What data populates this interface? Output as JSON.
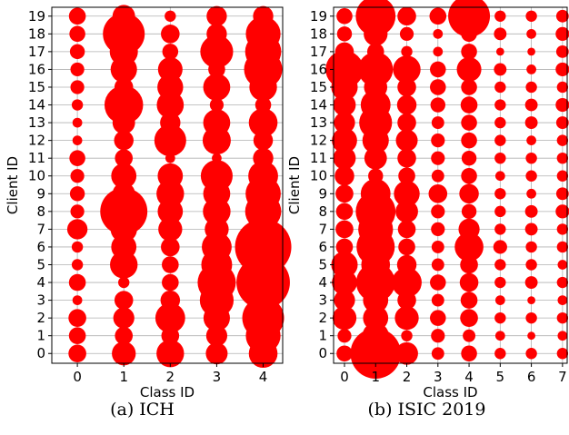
{
  "chart_data": [
    {
      "type": "scatter",
      "caption_label": "(a)",
      "caption_title": "ICH",
      "xlabel": "Class ID",
      "ylabel": "Client ID",
      "x_ticks": [
        "0",
        "1",
        "2",
        "3",
        "4"
      ],
      "y_ticks": [
        "0",
        "1",
        "2",
        "3",
        "4",
        "5",
        "6",
        "7",
        "8",
        "9",
        "10",
        "11",
        "12",
        "13",
        "14",
        "15",
        "16",
        "17",
        "18",
        "19"
      ],
      "xlim": [
        -0.55,
        4.42
      ],
      "ylim": [
        -0.55,
        19.5
      ],
      "grid": true,
      "marker_color": "#ff0000",
      "size_unit": "relative marker size (0-1)",
      "points": [
        [
          0,
          19,
          0.09
        ],
        [
          1,
          19,
          0.16
        ],
        [
          2,
          19,
          0.04
        ],
        [
          3,
          19,
          0.13
        ],
        [
          4,
          19,
          0.13
        ],
        [
          0,
          18,
          0.08
        ],
        [
          1,
          18,
          0.55
        ],
        [
          2,
          18,
          0.11
        ],
        [
          3,
          18,
          0.13
        ],
        [
          4,
          18,
          0.38
        ],
        [
          0,
          17,
          0.07
        ],
        [
          1,
          17,
          0.25
        ],
        [
          2,
          17,
          0.08
        ],
        [
          3,
          17,
          0.34
        ],
        [
          4,
          17,
          0.41
        ],
        [
          0,
          16,
          0.06
        ],
        [
          1,
          16,
          0.22
        ],
        [
          2,
          16,
          0.19
        ],
        [
          3,
          16,
          0.09
        ],
        [
          4,
          16,
          0.46
        ],
        [
          0,
          15,
          0.06
        ],
        [
          1,
          15,
          0.11
        ],
        [
          2,
          15,
          0.21
        ],
        [
          3,
          15,
          0.23
        ],
        [
          4,
          15,
          0.24
        ],
        [
          0,
          14,
          0.04
        ],
        [
          1,
          14,
          0.47
        ],
        [
          2,
          14,
          0.23
        ],
        [
          3,
          14,
          0.06
        ],
        [
          4,
          14,
          0.08
        ],
        [
          0,
          13,
          0.03
        ],
        [
          1,
          13,
          0.16
        ],
        [
          2,
          13,
          0.13
        ],
        [
          3,
          13,
          0.23
        ],
        [
          4,
          13,
          0.26
        ],
        [
          0,
          12,
          0.03
        ],
        [
          1,
          12,
          0.12
        ],
        [
          2,
          12,
          0.32
        ],
        [
          3,
          12,
          0.25
        ],
        [
          4,
          12,
          0.12
        ],
        [
          0,
          11,
          0.08
        ],
        [
          1,
          11,
          0.1
        ],
        [
          2,
          11,
          0.03
        ],
        [
          3,
          11,
          0.03
        ],
        [
          4,
          11,
          0.13
        ],
        [
          0,
          10,
          0.06
        ],
        [
          1,
          10,
          0.2
        ],
        [
          2,
          10,
          0.2
        ],
        [
          3,
          10,
          0.32
        ],
        [
          4,
          10,
          0.28
        ],
        [
          0,
          9,
          0.07
        ],
        [
          1,
          9,
          0.16
        ],
        [
          2,
          9,
          0.24
        ],
        [
          3,
          9,
          0.23
        ],
        [
          4,
          9,
          0.39
        ],
        [
          0,
          8,
          0.06
        ],
        [
          1,
          8,
          0.7
        ],
        [
          2,
          8,
          0.2
        ],
        [
          3,
          8,
          0.24
        ],
        [
          4,
          8,
          0.41
        ],
        [
          0,
          7,
          0.13
        ],
        [
          1,
          7,
          0.22
        ],
        [
          2,
          7,
          0.18
        ],
        [
          3,
          7,
          0.18
        ],
        [
          4,
          7,
          0.3
        ],
        [
          0,
          6,
          0.04
        ],
        [
          1,
          6,
          0.2
        ],
        [
          2,
          6,
          0.11
        ],
        [
          3,
          6,
          0.28
        ],
        [
          4,
          6,
          1.0
        ],
        [
          0,
          5,
          0.04
        ],
        [
          1,
          5,
          0.24
        ],
        [
          2,
          5,
          0.09
        ],
        [
          3,
          5,
          0.3
        ],
        [
          4,
          5,
          0.55
        ],
        [
          0,
          4,
          0.09
        ],
        [
          1,
          4,
          0.04
        ],
        [
          2,
          4,
          0.09
        ],
        [
          3,
          4,
          0.46
        ],
        [
          4,
          4,
          0.9
        ],
        [
          0,
          3,
          0.03
        ],
        [
          1,
          3,
          0.11
        ],
        [
          2,
          3,
          0.12
        ],
        [
          3,
          3,
          0.36
        ],
        [
          4,
          3,
          0.14
        ],
        [
          0,
          2,
          0.1
        ],
        [
          1,
          2,
          0.14
        ],
        [
          2,
          2,
          0.28
        ],
        [
          3,
          2,
          0.22
        ],
        [
          4,
          2,
          0.55
        ],
        [
          0,
          1,
          0.09
        ],
        [
          1,
          1,
          0.1
        ],
        [
          2,
          1,
          0.1
        ],
        [
          3,
          1,
          0.14
        ],
        [
          4,
          1,
          0.38
        ],
        [
          0,
          0,
          0.1
        ],
        [
          1,
          0,
          0.18
        ],
        [
          2,
          0,
          0.24
        ],
        [
          3,
          0,
          0.15
        ],
        [
          4,
          0,
          0.26
        ]
      ]
    },
    {
      "type": "scatter",
      "caption_label": "(b)",
      "caption_title": "ISIC 2019",
      "xlabel": "Class ID",
      "ylabel": "Client ID",
      "x_ticks": [
        "0",
        "1",
        "2",
        "3",
        "4",
        "5",
        "6",
        "7"
      ],
      "y_ticks": [
        "0",
        "1",
        "2",
        "3",
        "4",
        "5",
        "6",
        "7",
        "8",
        "9",
        "10",
        "11",
        "12",
        "13",
        "14",
        "15",
        "16",
        "17",
        "18",
        "19"
      ],
      "xlim": [
        -0.35,
        7.15
      ],
      "ylim": [
        -0.55,
        19.5
      ],
      "grid": true,
      "marker_color": "#ff0000",
      "size_unit": "relative marker size (0-1)",
      "points": [
        [
          0,
          19,
          0.08
        ],
        [
          1,
          19,
          0.5
        ],
        [
          2,
          19,
          0.11
        ],
        [
          3,
          19,
          0.09
        ],
        [
          4,
          19,
          0.55
        ],
        [
          5,
          19,
          0.04
        ],
        [
          6,
          19,
          0.04
        ],
        [
          7,
          19,
          0.05
        ],
        [
          0,
          18,
          0.07
        ],
        [
          1,
          18,
          0.18
        ],
        [
          2,
          18,
          0.06
        ],
        [
          3,
          18,
          0.03
        ],
        [
          4,
          18,
          0.08
        ],
        [
          5,
          18,
          0.05
        ],
        [
          6,
          18,
          0.03
        ],
        [
          7,
          18,
          0.06
        ],
        [
          0,
          17,
          0.11
        ],
        [
          1,
          17,
          0.09
        ],
        [
          2,
          17,
          0.04
        ],
        [
          3,
          17,
          0.03
        ],
        [
          4,
          17,
          0.08
        ],
        [
          5,
          17,
          0.02
        ],
        [
          6,
          17,
          0.02
        ],
        [
          7,
          17,
          0.05
        ],
        [
          0,
          16,
          0.45
        ],
        [
          1,
          16,
          0.38
        ],
        [
          2,
          16,
          0.24
        ],
        [
          3,
          16,
          0.08
        ],
        [
          4,
          16,
          0.19
        ],
        [
          5,
          16,
          0.05
        ],
        [
          6,
          16,
          0.03
        ],
        [
          7,
          16,
          0.06
        ],
        [
          0,
          15,
          0.22
        ],
        [
          1,
          15,
          0.17
        ],
        [
          2,
          15,
          0.11
        ],
        [
          3,
          15,
          0.08
        ],
        [
          4,
          15,
          0.08
        ],
        [
          5,
          15,
          0.04
        ],
        [
          6,
          15,
          0.04
        ],
        [
          7,
          15,
          0.04
        ],
        [
          0,
          14,
          0.16
        ],
        [
          1,
          14,
          0.28
        ],
        [
          2,
          14,
          0.12
        ],
        [
          3,
          14,
          0.07
        ],
        [
          4,
          14,
          0.09
        ],
        [
          5,
          14,
          0.04
        ],
        [
          6,
          14,
          0.05
        ],
        [
          7,
          14,
          0.06
        ],
        [
          0,
          13,
          0.14
        ],
        [
          1,
          13,
          0.34
        ],
        [
          2,
          13,
          0.11
        ],
        [
          3,
          13,
          0.05
        ],
        [
          4,
          13,
          0.08
        ],
        [
          5,
          13,
          0.04
        ],
        [
          6,
          13,
          0.05
        ],
        [
          7,
          13,
          0.05
        ],
        [
          0,
          12,
          0.2
        ],
        [
          1,
          12,
          0.22
        ],
        [
          2,
          12,
          0.15
        ],
        [
          3,
          12,
          0.06
        ],
        [
          4,
          12,
          0.08
        ],
        [
          5,
          12,
          0.04
        ],
        [
          6,
          12,
          0.03
        ],
        [
          7,
          12,
          0.04
        ],
        [
          0,
          11,
          0.16
        ],
        [
          1,
          11,
          0.16
        ],
        [
          2,
          11,
          0.11
        ],
        [
          3,
          11,
          0.06
        ],
        [
          4,
          11,
          0.07
        ],
        [
          5,
          11,
          0.04
        ],
        [
          6,
          11,
          0.04
        ],
        [
          7,
          11,
          0.04
        ],
        [
          0,
          10,
          0.12
        ],
        [
          1,
          10,
          0.07
        ],
        [
          2,
          10,
          0.09
        ],
        [
          3,
          10,
          0.05
        ],
        [
          4,
          10,
          0.08
        ],
        [
          5,
          10,
          0.03
        ],
        [
          6,
          10,
          0.04
        ],
        [
          7,
          10,
          0.04
        ],
        [
          0,
          9,
          0.1
        ],
        [
          1,
          9,
          0.28
        ],
        [
          2,
          9,
          0.21
        ],
        [
          3,
          9,
          0.11
        ],
        [
          4,
          9,
          0.12
        ],
        [
          5,
          9,
          0.04
        ],
        [
          6,
          9,
          0.03
        ],
        [
          7,
          9,
          0.05
        ],
        [
          0,
          8,
          0.09
        ],
        [
          1,
          8,
          0.5
        ],
        [
          2,
          8,
          0.16
        ],
        [
          3,
          8,
          0.06
        ],
        [
          4,
          8,
          0.07
        ],
        [
          5,
          8,
          0.04
        ],
        [
          6,
          8,
          0.05
        ],
        [
          7,
          8,
          0.06
        ],
        [
          0,
          7,
          0.1
        ],
        [
          1,
          7,
          0.38
        ],
        [
          2,
          7,
          0.1
        ],
        [
          3,
          7,
          0.06
        ],
        [
          4,
          7,
          0.14
        ],
        [
          5,
          7,
          0.04
        ],
        [
          6,
          7,
          0.05
        ],
        [
          7,
          7,
          0.04
        ],
        [
          0,
          6,
          0.09
        ],
        [
          1,
          6,
          0.46
        ],
        [
          2,
          6,
          0.09
        ],
        [
          3,
          6,
          0.05
        ],
        [
          4,
          6,
          0.26
        ],
        [
          5,
          6,
          0.06
        ],
        [
          6,
          6,
          0.04
        ],
        [
          7,
          6,
          0.04
        ],
        [
          0,
          5,
          0.22
        ],
        [
          1,
          5,
          0.26
        ],
        [
          2,
          5,
          0.12
        ],
        [
          3,
          5,
          0.05
        ],
        [
          4,
          5,
          0.1
        ],
        [
          5,
          5,
          0.04
        ],
        [
          6,
          5,
          0.04
        ],
        [
          7,
          5,
          0.03
        ],
        [
          0,
          4,
          0.2
        ],
        [
          1,
          4,
          0.48
        ],
        [
          2,
          4,
          0.28
        ],
        [
          3,
          4,
          0.08
        ],
        [
          4,
          4,
          0.11
        ],
        [
          5,
          4,
          0.04
        ],
        [
          6,
          4,
          0.05
        ],
        [
          7,
          4,
          0.04
        ],
        [
          0,
          3,
          0.14
        ],
        [
          1,
          3,
          0.2
        ],
        [
          2,
          3,
          0.11
        ],
        [
          3,
          3,
          0.05
        ],
        [
          4,
          3,
          0.09
        ],
        [
          5,
          3,
          0.03
        ],
        [
          6,
          3,
          0.02
        ],
        [
          7,
          3,
          0.03
        ],
        [
          0,
          2,
          0.18
        ],
        [
          1,
          2,
          0.2
        ],
        [
          2,
          2,
          0.18
        ],
        [
          3,
          2,
          0.08
        ],
        [
          4,
          2,
          0.1
        ],
        [
          5,
          2,
          0.04
        ],
        [
          6,
          2,
          0.04
        ],
        [
          7,
          2,
          0.04
        ],
        [
          0,
          1,
          0.06
        ],
        [
          1,
          1,
          0.22
        ],
        [
          2,
          1,
          0.04
        ],
        [
          3,
          1,
          0.06
        ],
        [
          4,
          1,
          0.05
        ],
        [
          5,
          1,
          0.03
        ],
        [
          6,
          1,
          0.02
        ],
        [
          7,
          1,
          0.03
        ],
        [
          0,
          0,
          0.08
        ],
        [
          1,
          0,
          0.8
        ],
        [
          2,
          0,
          0.16
        ],
        [
          3,
          0,
          0.05
        ],
        [
          4,
          0,
          0.08
        ],
        [
          5,
          0,
          0.04
        ],
        [
          6,
          0,
          0.04
        ],
        [
          7,
          0,
          0.04
        ]
      ]
    }
  ]
}
